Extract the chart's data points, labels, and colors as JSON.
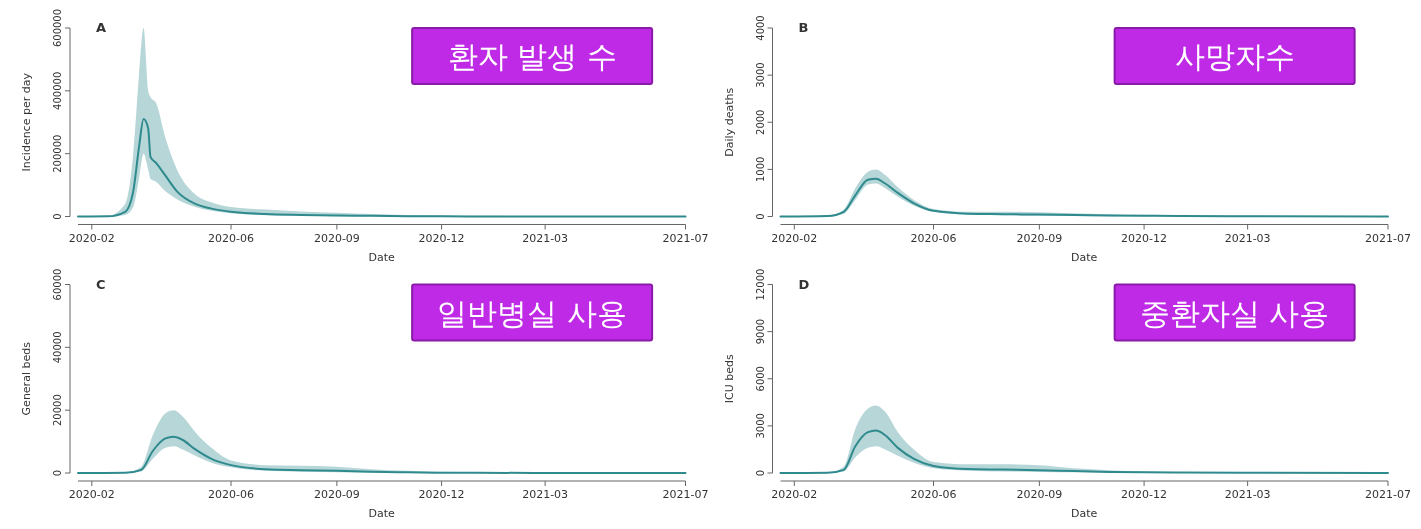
{
  "chart_data": [
    {
      "type": "line",
      "title": "A",
      "xlabel": "Date",
      "ylabel": "Incidence per day",
      "annotations": [
        "환자 발생 수"
      ],
      "xlim": [
        "2020-01-20",
        "2021-07-01"
      ],
      "xticks": [
        "2020-02",
        "2020-06",
        "2020-09",
        "2020-12",
        "2021-03",
        "2021-07"
      ],
      "ylim": [
        0,
        600000
      ],
      "yticks": [
        0,
        200000,
        400000,
        600000
      ],
      "x": [
        "2020-01-20",
        "2020-02-15",
        "2020-03-01",
        "2020-03-08",
        "2020-03-13",
        "2020-03-17",
        "2020-03-21",
        "2020-03-23",
        "2020-03-28",
        "2020-04-05",
        "2020-04-15",
        "2020-05-01",
        "2020-05-15",
        "2020-06-01",
        "2020-07-01",
        "2020-08-01",
        "2020-09-01",
        "2020-10-01",
        "2020-11-01",
        "2020-12-01",
        "2021-01-01",
        "2021-03-01",
        "2021-05-01",
        "2021-07-01"
      ],
      "series": [
        {
          "color": "#2f8a8e",
          "values": [
            0,
            500,
            15000,
            80000,
            220000,
            310000,
            280000,
            190000,
            170000,
            130000,
            80000,
            40000,
            25000,
            15000,
            8000,
            5000,
            3000,
            2000,
            1000,
            500,
            300,
            100,
            50,
            0
          ],
          "lower": [
            0,
            0,
            5000,
            30000,
            120000,
            200000,
            150000,
            120000,
            110000,
            80000,
            55000,
            30000,
            18000,
            10000,
            4000,
            2000,
            1000,
            500,
            200,
            100,
            0,
            0,
            0,
            0
          ],
          "upper": [
            0,
            2000,
            40000,
            200000,
            450000,
            600000,
            400000,
            380000,
            360000,
            250000,
            150000,
            70000,
            45000,
            30000,
            22000,
            16000,
            12000,
            8000,
            5000,
            3000,
            2000,
            1000,
            500,
            200
          ]
        }
      ]
    },
    {
      "type": "line",
      "title": "B",
      "xlabel": "Date",
      "ylabel": "Daily deaths",
      "annotations": [
        "사망자수"
      ],
      "xlim": [
        "2020-01-20",
        "2021-07-01"
      ],
      "xticks": [
        "2020-02",
        "2020-06",
        "2020-09",
        "2020-12",
        "2021-03",
        "2021-07"
      ],
      "ylim": [
        0,
        4000
      ],
      "yticks": [
        0,
        1000,
        2000,
        3000,
        4000
      ],
      "x": [
        "2020-01-20",
        "2020-03-01",
        "2020-03-15",
        "2020-03-25",
        "2020-04-05",
        "2020-04-12",
        "2020-04-20",
        "2020-05-01",
        "2020-05-15",
        "2020-06-01",
        "2020-07-01",
        "2020-08-01",
        "2020-09-01",
        "2020-10-01",
        "2020-11-01",
        "2020-12-01",
        "2021-01-01",
        "2021-03-01",
        "2021-07-01"
      ],
      "series": [
        {
          "color": "#2f8a8e",
          "values": [
            0,
            10,
            100,
            450,
            780,
            800,
            700,
            500,
            280,
            120,
            60,
            50,
            40,
            30,
            20,
            15,
            10,
            5,
            0
          ],
          "lower": [
            0,
            0,
            60,
            350,
            680,
            700,
            600,
            420,
            230,
            100,
            40,
            25,
            15,
            10,
            5,
            3,
            2,
            0,
            0
          ],
          "upper": [
            0,
            20,
            150,
            600,
            950,
            1000,
            880,
            620,
            350,
            160,
            100,
            100,
            90,
            70,
            50,
            35,
            25,
            15,
            5
          ]
        }
      ]
    },
    {
      "type": "line",
      "title": "C",
      "xlabel": "Date",
      "ylabel": "General beds",
      "annotations": [
        "일반병실 사용"
      ],
      "xlim": [
        "2020-01-20",
        "2021-07-01"
      ],
      "xticks": [
        "2020-02",
        "2020-06",
        "2020-09",
        "2020-12",
        "2021-03",
        "2021-07"
      ],
      "ylim": [
        0,
        60000
      ],
      "yticks": [
        0,
        20000,
        40000,
        60000
      ],
      "x": [
        "2020-01-20",
        "2020-03-01",
        "2020-03-15",
        "2020-03-25",
        "2020-04-05",
        "2020-04-12",
        "2020-04-20",
        "2020-05-01",
        "2020-05-15",
        "2020-06-01",
        "2020-07-01",
        "2020-08-01",
        "2020-09-01",
        "2020-10-01",
        "2020-11-01",
        "2020-12-01",
        "2021-01-01",
        "2021-03-01",
        "2021-07-01"
      ],
      "series": [
        {
          "color": "#2f8a8e",
          "values": [
            0,
            50,
            1000,
            7000,
            11000,
            11500,
            10500,
            7500,
            4500,
            2500,
            1200,
            900,
            700,
            400,
            200,
            100,
            60,
            20,
            0
          ],
          "lower": [
            0,
            0,
            500,
            4500,
            8000,
            8500,
            7500,
            5500,
            3300,
            1800,
            700,
            400,
            250,
            100,
            50,
            20,
            10,
            0,
            0
          ],
          "upper": [
            0,
            200,
            2000,
            12000,
            19000,
            20000,
            18000,
            13000,
            8000,
            4000,
            2500,
            2300,
            2000,
            1200,
            700,
            400,
            250,
            100,
            20
          ]
        }
      ]
    },
    {
      "type": "line",
      "title": "D",
      "xlabel": "Date",
      "ylabel": "ICU beds",
      "annotations": [
        "중환자실 사용"
      ],
      "xlim": [
        "2020-01-20",
        "2021-07-01"
      ],
      "xticks": [
        "2020-02",
        "2020-06",
        "2020-09",
        "2020-12",
        "2021-03",
        "2021-07"
      ],
      "ylim": [
        0,
        12000
      ],
      "yticks": [
        0,
        3000,
        6000,
        9000,
        12000
      ],
      "x": [
        "2020-01-20",
        "2020-03-01",
        "2020-03-15",
        "2020-03-25",
        "2020-04-05",
        "2020-04-12",
        "2020-04-20",
        "2020-05-01",
        "2020-05-15",
        "2020-06-01",
        "2020-07-01",
        "2020-08-01",
        "2020-09-01",
        "2020-10-01",
        "2020-11-01",
        "2020-12-01",
        "2021-01-01",
        "2021-03-01",
        "2021-07-01"
      ],
      "series": [
        {
          "color": "#2f8a8e",
          "values": [
            0,
            10,
            200,
            1700,
            2600,
            2700,
            2400,
            1600,
            900,
            450,
            250,
            220,
            180,
            120,
            70,
            40,
            25,
            10,
            0
          ],
          "lower": [
            0,
            0,
            100,
            1000,
            1600,
            1700,
            1500,
            1100,
            650,
            300,
            150,
            100,
            70,
            40,
            20,
            10,
            5,
            0,
            0
          ],
          "upper": [
            0,
            30,
            400,
            2800,
            4100,
            4300,
            3900,
            2600,
            1500,
            700,
            550,
            550,
            500,
            300,
            180,
            100,
            60,
            30,
            5
          ]
        }
      ]
    }
  ]
}
